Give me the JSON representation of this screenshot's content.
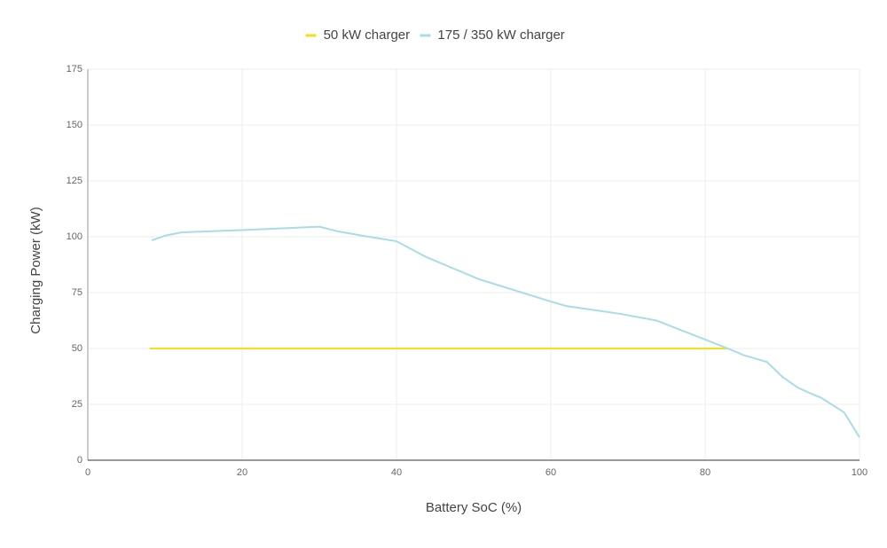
{
  "chart_data": {
    "type": "line",
    "x_label": "Battery SoC (%)",
    "y_label": "Charging Power (kW)",
    "xlim": [
      0,
      100
    ],
    "xticks": [
      0,
      20,
      40,
      60,
      80,
      100
    ],
    "ylim": [
      0,
      175
    ],
    "yticks": [
      0,
      25,
      50,
      75,
      100,
      125,
      150,
      175
    ],
    "grid": true,
    "legend": "top",
    "series": [
      {
        "name": "50 kW charger",
        "color": "#f5de1e",
        "x": [
          8,
          83
        ],
        "values": [
          50,
          50
        ]
      },
      {
        "name": "175 / 350 kW charger",
        "color": "#a8dce8",
        "x": [
          8.3,
          10,
          12.2,
          20,
          30,
          32.3,
          35.7,
          40,
          43.8,
          50.7,
          60,
          62,
          69,
          73.7,
          80,
          83.2,
          85,
          88,
          90,
          92,
          94,
          95,
          98,
          100
        ],
        "values": [
          98.4,
          100.5,
          102,
          103,
          104.5,
          102.5,
          100.4,
          98,
          91,
          81,
          71,
          69,
          65.5,
          62.5,
          54,
          49.6,
          47,
          44,
          37.3,
          32.5,
          29.4,
          28,
          21.4,
          10.3
        ]
      }
    ]
  }
}
